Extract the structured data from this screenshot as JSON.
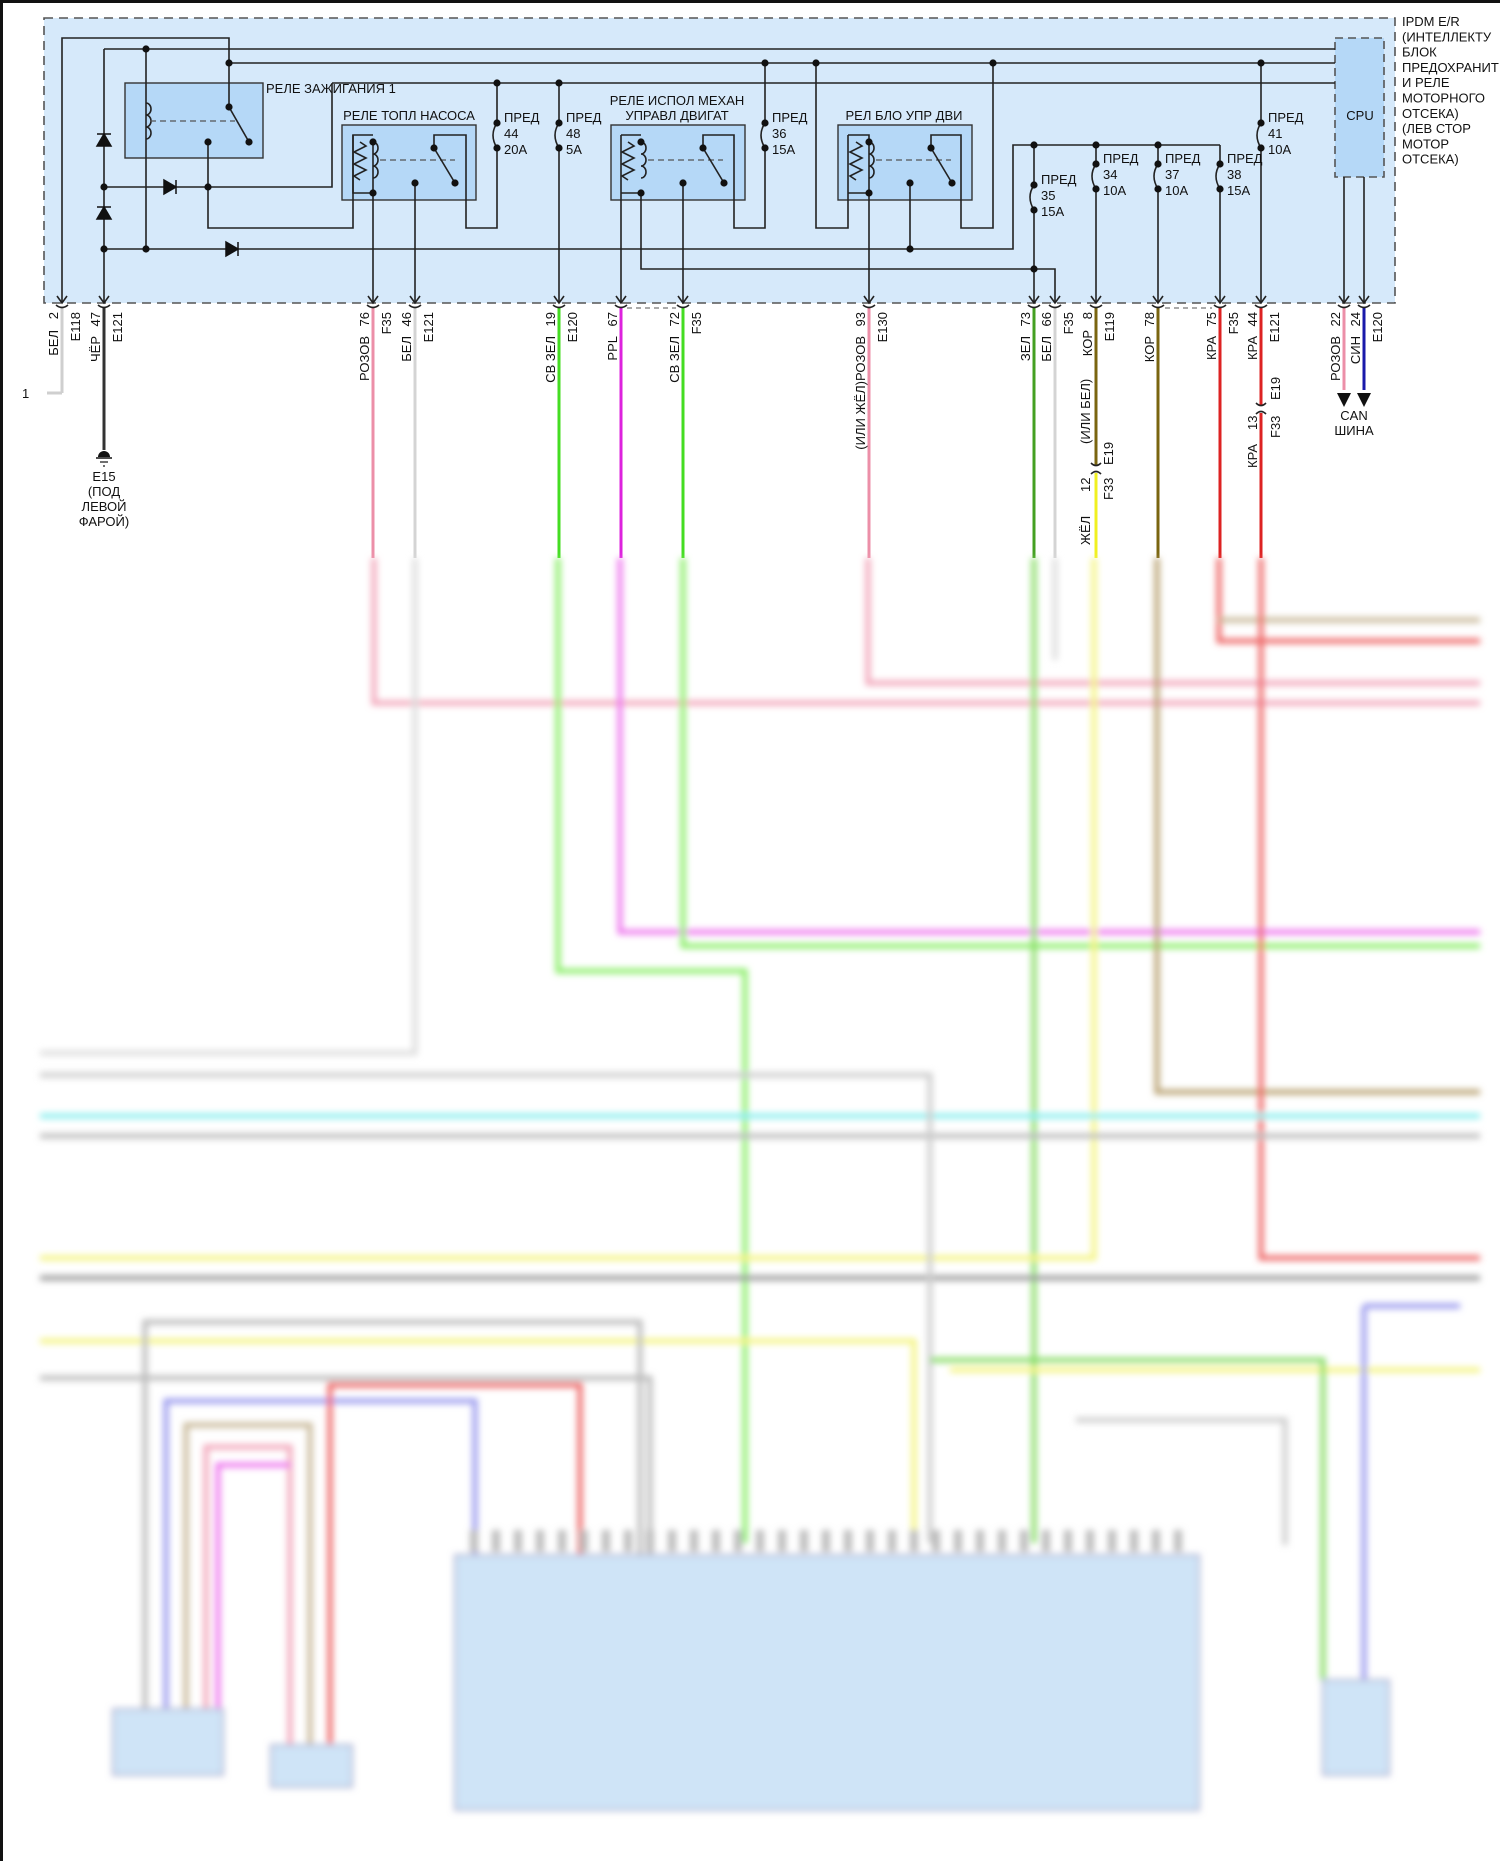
{
  "ipdm": {
    "label_lines": [
      "IPDM E/R",
      "(ИНТЕЛЛЕКТУ",
      "БЛОК",
      "ПРЕДОХРАНИТ",
      "И РЕЛЕ",
      "МОТОРНОГО",
      "ОТСЕКА)",
      "(ЛЕВ СТОР",
      "МОТОР",
      "ОТСЕКА)"
    ],
    "cpu": "CPU",
    "fill_color": "#d6e9fa",
    "relay_fill": "#b5d8f7"
  },
  "relays": {
    "ignition": "РЕЛЕ ЗАЖИГАНИЯ 1",
    "fuel_pump": "РЕЛЕ ТОПЛ НАСОСА",
    "actuator_line1": "РЕЛЕ ИСПОЛ МЕХАН",
    "actuator_line2": "УПРАВЛ ДВИГАТ",
    "ecm": "РЕЛ БЛО УПР ДВИ"
  },
  "fuses": [
    {
      "name": "ПРЕД",
      "number": "44",
      "rating": "20A"
    },
    {
      "name": "ПРЕД",
      "number": "48",
      "rating": "5A"
    },
    {
      "name": "ПРЕД",
      "number": "36",
      "rating": "15A"
    },
    {
      "name": "ПРЕД",
      "number": "35",
      "rating": "15A"
    },
    {
      "name": "ПРЕД",
      "number": "34",
      "rating": "10A"
    },
    {
      "name": "ПРЕД",
      "number": "37",
      "rating": "10A"
    },
    {
      "name": "ПРЕД",
      "number": "38",
      "rating": "15A"
    },
    {
      "name": "ПРЕД",
      "number": "41",
      "rating": "10A"
    }
  ],
  "pins": [
    {
      "num": "2",
      "conn": "E118",
      "wire": "БЕЛ",
      "color": "#cfcfcf"
    },
    {
      "num": "47",
      "conn": "E121",
      "wire": "ЧЁР",
      "color": "#333333"
    },
    {
      "num": "76",
      "conn": "F35",
      "wire": "РОЗОВ",
      "color": "#ec8fa8"
    },
    {
      "num": "46",
      "conn": "E121",
      "wire": "БЕЛ",
      "color": "#d4d4d4"
    },
    {
      "num": "19",
      "conn": "E120",
      "wire": "СВ ЗЕЛ",
      "color": "#44dd22"
    },
    {
      "num": "67",
      "conn": "",
      "wire": "PPL",
      "color": "#dd22dd"
    },
    {
      "num": "72",
      "conn": "F35",
      "wire": "СВ ЗЕЛ",
      "color": "#44dd22"
    },
    {
      "num": "93",
      "conn": "E130",
      "wire": "(ИЛИ ЖЁЛ)РОЗОВ",
      "color": "#ec8fa8"
    },
    {
      "num": "73",
      "conn": "",
      "wire": "ЗЕЛ",
      "color": "#44a022"
    },
    {
      "num": "66",
      "conn": "F35",
      "wire": "БЕЛ",
      "color": "#d4d4d4"
    },
    {
      "num": "8",
      "conn": "E119",
      "wire": "КОР",
      "color": "#7a6510"
    },
    {
      "num": "78",
      "conn": "",
      "wire": "КОР",
      "color": "#7a6510"
    },
    {
      "num": "75",
      "conn": "F35",
      "wire": "КРА",
      "color": "#dd2222"
    },
    {
      "num": "44",
      "conn": "E121",
      "wire": "КРА",
      "color": "#dd2222"
    },
    {
      "num": "22",
      "conn": "",
      "wire": "РОЗОВ",
      "color": "#ec8fa8"
    },
    {
      "num": "24",
      "conn": "E120",
      "wire": "СИН",
      "color": "#1a1aaa"
    }
  ],
  "terminal_1": "1",
  "ground": {
    "name": "E15",
    "l1": "(ПОД",
    "l2": "ЛЕВОЙ",
    "l3": "ФАРОЙ)"
  },
  "splice_brown": {
    "alt": "(ИЛИ БЕЛ)",
    "conn_top": "E19",
    "num": "12",
    "conn_bottom": "F33",
    "wire_after": "ЖЁЛ",
    "color_after": "#f0f020"
  },
  "splice_red": {
    "conn_top": "E19",
    "num": "13",
    "conn_bottom": "F33",
    "wire_after": "КРА"
  },
  "can": {
    "l1": "CAN",
    "l2": "ШИНА"
  }
}
